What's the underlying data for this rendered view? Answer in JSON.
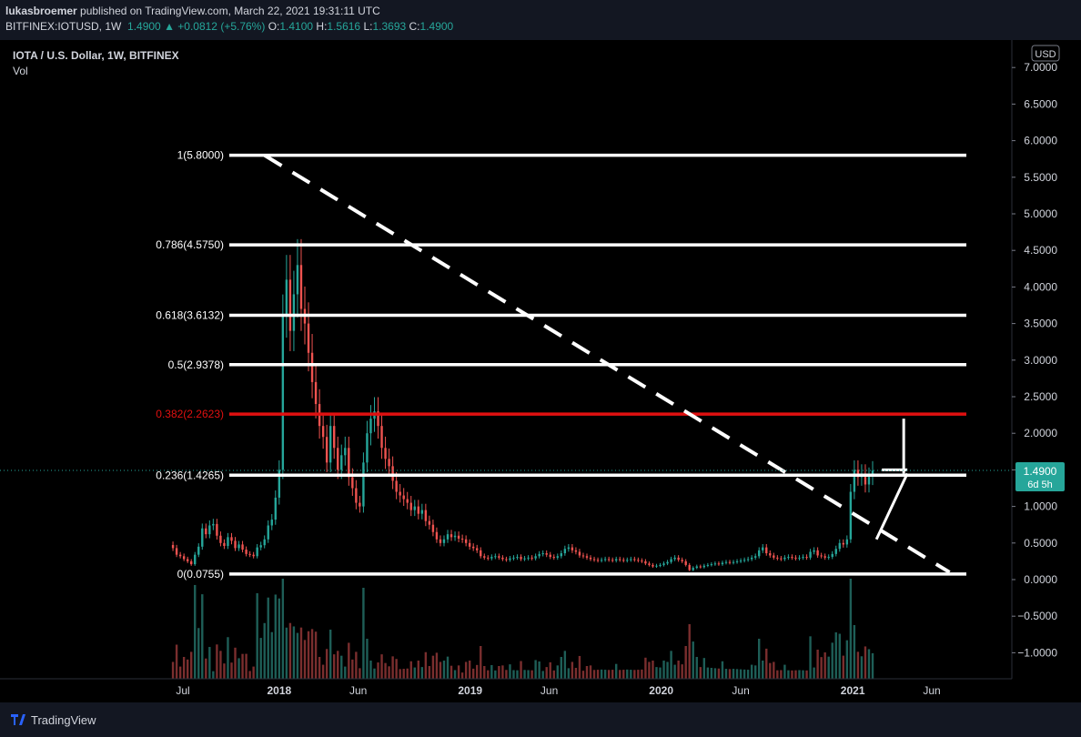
{
  "header": {
    "publisher": "lukasbroemer",
    "published_text": " published on TradingView.com, March 22, 2021 19:31:11 UTC",
    "symbol_line": "BITFINEX:IOTUSD, 1W",
    "price": "1.4900",
    "change": "▲ +0.0812 (+5.76%)",
    "o_label": "O:",
    "o_value": "1.4100",
    "h_label": "H:",
    "h_value": "1.5616",
    "l_label": "L:",
    "l_value": "1.3693",
    "c_label": "C:",
    "c_value": "1.4900"
  },
  "chart_title": "IOTA / U.S. Dollar, 1W, BITFINEX",
  "vol_label": "Vol",
  "currency": "USD",
  "last_price_tag": {
    "price": "1.4900",
    "countdown": "6d 5h"
  },
  "footer": {
    "brand": "TradingView"
  },
  "colors": {
    "up": "#26a69a",
    "down": "#ef5350",
    "fib": "#ffffff",
    "fib_highlight": "#e01010",
    "background": "#000000"
  },
  "chart_data": {
    "type": "candlestick",
    "title": "IOTA / U.S. Dollar, 1W, BITFINEX",
    "y_ticks": [
      "7.0000",
      "6.5000",
      "6.0000",
      "5.5000",
      "5.0000",
      "4.5000",
      "4.0000",
      "3.5000",
      "3.0000",
      "2.5000",
      "2.0000",
      "1.5000",
      "1.0000",
      "0.5000",
      "0.0000",
      "−0.5000",
      "−1.0000"
    ],
    "x_ticks": [
      "Jul",
      "2018",
      "Jun",
      "2019",
      "Jun",
      "2020",
      "Jun",
      "2021",
      "Jun"
    ],
    "ylim": [
      -1.35,
      7.2
    ],
    "fib_levels": [
      {
        "label": "1(5.8000)",
        "value": 5.8,
        "highlight": false
      },
      {
        "label": "0.786(4.5750)",
        "value": 4.575,
        "highlight": false
      },
      {
        "label": "0.618(3.6132)",
        "value": 3.6132,
        "highlight": false
      },
      {
        "label": "0.5(2.9378)",
        "value": 2.9378,
        "highlight": false
      },
      {
        "label": "0.382(2.2623)",
        "value": 2.2623,
        "highlight": true
      },
      {
        "label": "0.236(1.4265)",
        "value": 1.4265,
        "highlight": false
      },
      {
        "label": "0(0.0755)",
        "value": 0.0755,
        "highlight": false
      }
    ],
    "trendline": {
      "from": {
        "x": "2017-12-04",
        "y": 5.8
      },
      "to": {
        "x": "2021-07-05",
        "y": 0.1
      },
      "style": "dashed"
    },
    "annotation_flag": {
      "x": "2021-03-22",
      "y_top": 2.2,
      "y_bottom": 1.45
    },
    "last_close": 1.49,
    "weekly_close": [
      0.43,
      0.34,
      0.32,
      0.28,
      0.25,
      0.21,
      0.34,
      0.45,
      0.7,
      0.62,
      0.74,
      0.76,
      0.6,
      0.5,
      0.46,
      0.58,
      0.53,
      0.43,
      0.48,
      0.41,
      0.35,
      0.34,
      0.32,
      0.44,
      0.47,
      0.55,
      0.74,
      0.82,
      1.12,
      1.5,
      3.6,
      4.1,
      3.4,
      3.9,
      4.3,
      3.7,
      3.5,
      3.1,
      2.7,
      2.4,
      2.1,
      1.95,
      1.6,
      2.1,
      1.8,
      1.5,
      1.7,
      1.8,
      1.4,
      1.25,
      1.05,
      1.0,
      1.6,
      2.0,
      2.2,
      2.3,
      2.1,
      1.8,
      1.65,
      1.55,
      1.35,
      1.2,
      1.15,
      1.1,
      1.05,
      0.95,
      1.0,
      0.9,
      0.95,
      0.8,
      0.75,
      0.65,
      0.55,
      0.5,
      0.55,
      0.62,
      0.58,
      0.6,
      0.56,
      0.55,
      0.5,
      0.45,
      0.43,
      0.4,
      0.32,
      0.3,
      0.29,
      0.31,
      0.32,
      0.3,
      0.28,
      0.27,
      0.29,
      0.3,
      0.31,
      0.28,
      0.29,
      0.3,
      0.29,
      0.32,
      0.35,
      0.36,
      0.34,
      0.31,
      0.3,
      0.32,
      0.36,
      0.42,
      0.44,
      0.4,
      0.38,
      0.33,
      0.32,
      0.3,
      0.28,
      0.27,
      0.26,
      0.27,
      0.28,
      0.27,
      0.26,
      0.28,
      0.27,
      0.26,
      0.27,
      0.28,
      0.27,
      0.26,
      0.25,
      0.22,
      0.2,
      0.18,
      0.19,
      0.2,
      0.22,
      0.24,
      0.28,
      0.3,
      0.27,
      0.25,
      0.2,
      0.13,
      0.16,
      0.18,
      0.17,
      0.19,
      0.2,
      0.21,
      0.22,
      0.21,
      0.23,
      0.24,
      0.23,
      0.24,
      0.25,
      0.26,
      0.27,
      0.28,
      0.3,
      0.32,
      0.4,
      0.44,
      0.36,
      0.33,
      0.3,
      0.29,
      0.28,
      0.3,
      0.31,
      0.3,
      0.29,
      0.3,
      0.31,
      0.3,
      0.38,
      0.4,
      0.33,
      0.32,
      0.3,
      0.31,
      0.35,
      0.42,
      0.5,
      0.48,
      0.55,
      1.2,
      1.5,
      1.4,
      1.45,
      1.3,
      1.41,
      1.49
    ]
  }
}
